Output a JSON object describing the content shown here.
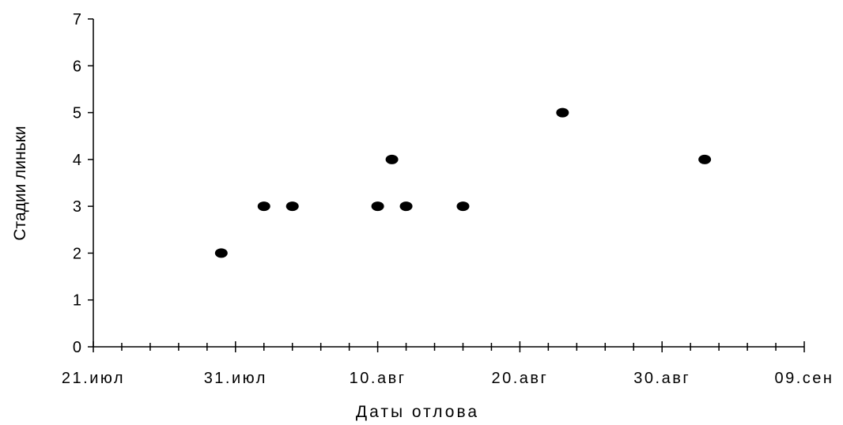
{
  "chart_data": {
    "type": "scatter",
    "xlabel": "Даты отлова",
    "ylabel": "Стадии линьки",
    "x_axis_kind": "date",
    "year": 2000,
    "x_range": [
      "2000-07-21",
      "2000-09-09"
    ],
    "x_ticks": [
      {
        "date": "2000-07-21",
        "label": "21.июл"
      },
      {
        "date": "2000-07-31",
        "label": "31.июл"
      },
      {
        "date": "2000-08-10",
        "label": "10.авг"
      },
      {
        "date": "2000-08-20",
        "label": "20.авг"
      },
      {
        "date": "2000-08-30",
        "label": "30.авг"
      },
      {
        "date": "2000-09-09",
        "label": "09.сен"
      }
    ],
    "ylim": [
      0,
      7
    ],
    "y_ticks": [
      "0",
      "1",
      "2",
      "3",
      "4",
      "5",
      "6",
      "7"
    ],
    "grid": false,
    "legend": "none",
    "marker_color": "#000000",
    "points": [
      {
        "x": "2000-07-30",
        "y": 2
      },
      {
        "x": "2000-08-02",
        "y": 3
      },
      {
        "x": "2000-08-04",
        "y": 3
      },
      {
        "x": "2000-08-10",
        "y": 3
      },
      {
        "x": "2000-08-11",
        "y": 4
      },
      {
        "x": "2000-08-12",
        "y": 3
      },
      {
        "x": "2000-08-16",
        "y": 3
      },
      {
        "x": "2000-08-23",
        "y": 5
      },
      {
        "x": "2000-09-02",
        "y": 4
      }
    ]
  }
}
